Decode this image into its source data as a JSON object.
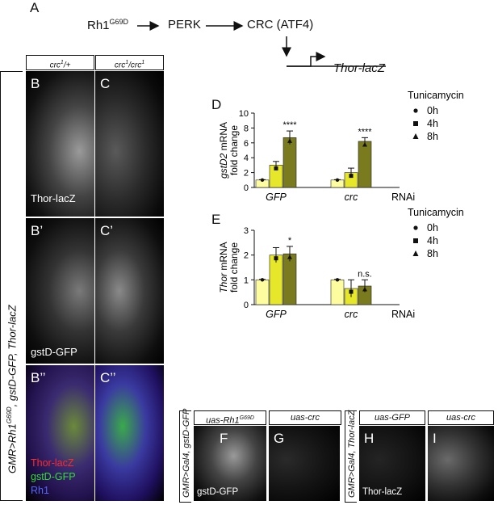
{
  "figure_letter": "A",
  "pathway": {
    "n1": "Rh1",
    "n1_sup": "G69D",
    "n2": "PERK",
    "n3": "CRC (ATF4)",
    "gene": "Thor-lacZ"
  },
  "col_headers": {
    "c1": "crc",
    "c1_sup": "1",
    "c1_rest": "/+",
    "c2": "crc",
    "c2_sup": "1",
    "c2_rest": "/crc",
    "c2_sup2": "1"
  },
  "row_label": {
    "main": "GMR>Rh1",
    "sup": "G69D",
    "rest": ", gstD-GFP, Thor-lacZ"
  },
  "panels": {
    "B": "B",
    "C": "C",
    "B1": "B’",
    "C1": "C’",
    "B2": "B’’",
    "C2": "C’’",
    "F": "F",
    "G": "G",
    "H": "H",
    "I": "I",
    "D": "D",
    "E": "E"
  },
  "inner_labels": {
    "thor": "Thor-lacZ",
    "gstd": "gstD-GFP",
    "merge_thor": "Thor-lacZ",
    "merge_gstd": "gstD-GFP",
    "merge_rh1": "Rh1"
  },
  "bottom": {
    "F_hdr": "uas-Rh1",
    "F_hdr_sup": "G69D",
    "G_hdr": "uas-crc",
    "H_hdr": "uas-GFP",
    "I_hdr": "uas-crc",
    "FG_side": "GMR>Gal4, gstD-GFP",
    "HI_side": "GMR>Gal4, Thor-lacZ",
    "F_label": "gstD-GFP",
    "H_label": "Thor-lacZ"
  },
  "chart_data": [
    {
      "type": "bar",
      "panel": "D",
      "ylabel_italic": "gstD2",
      "ylabel_rest": " mRNA",
      "ylabel2": "fold change",
      "groups": [
        "GFP",
        "crc"
      ],
      "group_suffix": "RNAi",
      "yticks": [
        "0",
        "2",
        "4",
        "6",
        "8",
        "10"
      ],
      "ylim": [
        0,
        10
      ],
      "legend_title": "Tunicamycin",
      "series": [
        {
          "name": "0h",
          "values": [
            1.0,
            1.0
          ],
          "errors": [
            0.05,
            0.05
          ],
          "color": "#fdfda0"
        },
        {
          "name": "4h",
          "values": [
            3.0,
            2.0
          ],
          "errors": [
            0.5,
            0.6
          ],
          "color": "#e6e62a"
        },
        {
          "name": "8h",
          "values": [
            6.7,
            6.2
          ],
          "errors": [
            0.9,
            0.5
          ],
          "color": "#7a7a1e"
        }
      ],
      "significance": [
        "****",
        "****"
      ]
    },
    {
      "type": "bar",
      "panel": "E",
      "ylabel_italic": "Thor",
      "ylabel_rest": " mRNA",
      "ylabel2": "fold change",
      "groups": [
        "GFP",
        "crc"
      ],
      "group_suffix": "RNAi",
      "yticks": [
        "0",
        "1",
        "2",
        "3"
      ],
      "ylim": [
        0,
        3
      ],
      "legend_title": "Tunicamycin",
      "series": [
        {
          "name": "0h",
          "values": [
            1.0,
            1.0
          ],
          "errors": [
            0.02,
            0.02
          ],
          "color": "#fdfda0"
        },
        {
          "name": "4h",
          "values": [
            2.0,
            0.65
          ],
          "errors": [
            0.3,
            0.35
          ],
          "color": "#e6e62a"
        },
        {
          "name": "8h",
          "values": [
            2.05,
            0.75
          ],
          "errors": [
            0.3,
            0.25
          ],
          "color": "#7a7a1e"
        }
      ],
      "significance": [
        "*",
        "n.s."
      ]
    }
  ]
}
